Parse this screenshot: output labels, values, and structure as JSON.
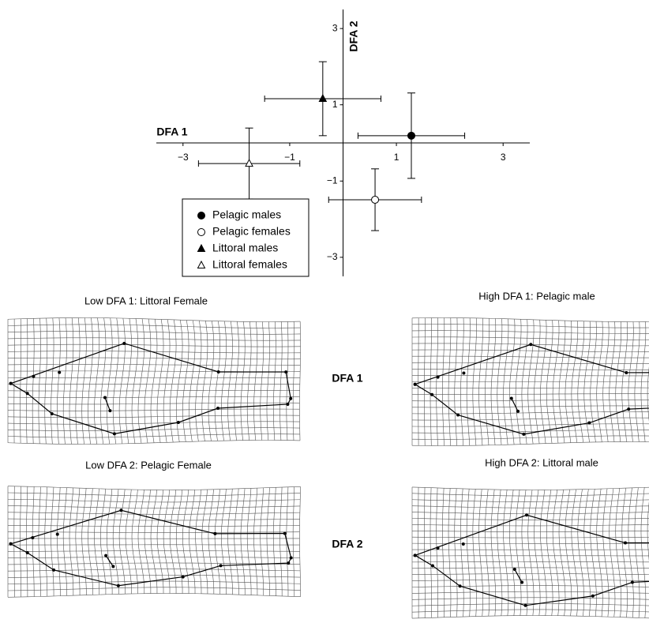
{
  "chart_data": {
    "type": "scatter",
    "xlabel": "DFA 1",
    "ylabel": "DFA 2",
    "xlim": [
      -3.5,
      3.5
    ],
    "ylim": [
      -3.5,
      3.5
    ],
    "xticks": [
      {
        "value": -3,
        "label": "−3"
      },
      {
        "value": -1,
        "label": "−1"
      },
      1,
      3
    ],
    "yticks": [
      {
        "value": -3,
        "label": "−3"
      },
      {
        "value": -1,
        "label": "−1"
      },
      1,
      3
    ],
    "legend": "lower left",
    "series": [
      {
        "name": "Pelagic males",
        "marker": "circle",
        "filled": true,
        "color": "#000000",
        "x": [
          1.28
        ],
        "y": [
          0.19
        ],
        "xerr": [
          1.0
        ],
        "yerr": [
          1.12
        ]
      },
      {
        "name": "Pelagic females",
        "marker": "circle",
        "filled": false,
        "color": "#000000",
        "x": [
          0.6
        ],
        "y": [
          -1.49
        ],
        "xerr": [
          0.87
        ],
        "yerr": [
          0.81
        ]
      },
      {
        "name": "Littoral males",
        "marker": "triangle",
        "filled": true,
        "color": "#000000",
        "x": [
          -0.38
        ],
        "y": [
          1.16
        ],
        "xerr": [
          1.09
        ],
        "yerr": [
          0.97
        ]
      },
      {
        "name": "Littoral females",
        "marker": "triangle",
        "filled": false,
        "color": "#000000",
        "x": [
          -1.76
        ],
        "y": [
          -0.54
        ],
        "xerr": [
          0.95
        ],
        "yerr": [
          0.93
        ]
      }
    ]
  },
  "panels": [
    {
      "label": "DFA 1",
      "left_title": "Low DFA 1: Littoral Female",
      "right_title": "High DFA 1: Pelagic male"
    },
    {
      "label": "DFA 2",
      "left_title": "Low DFA 2: Pelagic Female",
      "right_title": "High DFA 2: Littoral male"
    }
  ]
}
